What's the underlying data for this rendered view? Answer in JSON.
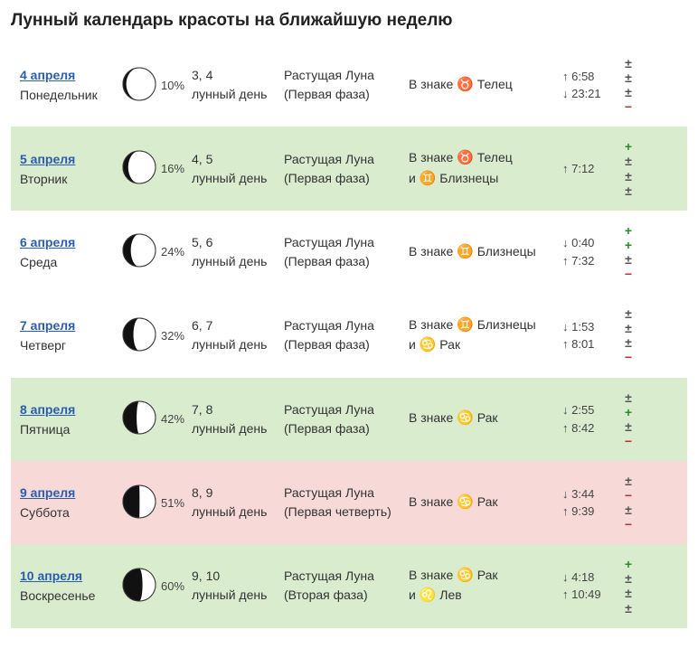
{
  "title": "Лунный календарь красоты на ближайшую неделю",
  "colors": {
    "row_plain": "#ffffff",
    "row_green": "#d9ecce",
    "row_pink": "#f7dad8",
    "link": "#2a5db0",
    "mark_plus": "#2c8a2c",
    "mark_minus": "#c03030",
    "mark_pm": "#555555",
    "moon_dark": "#111111",
    "moon_light": "#ffffff",
    "moon_border": "#333333"
  },
  "zodiac_glyphs": {
    "taurus": "♉",
    "gemini": "♊",
    "cancer": "♋",
    "leo": "♌"
  },
  "rows": [
    {
      "bg": "plain",
      "date": "4 апреля",
      "dow": "Понедельник",
      "illum": "10%",
      "illum_val": 0.1,
      "lunar_days": "3, 4",
      "lunar_days_label": "лунный день",
      "phase_line1": "Растущая Луна",
      "phase_line2": "(Первая фаза)",
      "sign_line1_pre": "В знаке ",
      "sign_line1_glyph": "♉",
      "sign_line1_post": " Телец",
      "sign_line2_pre": "",
      "sign_line2_glyph": "",
      "sign_line2_post": "",
      "time1": "↑ 6:58",
      "time2": "↓ 23:21",
      "marks": [
        "±",
        "±",
        "±",
        "−"
      ]
    },
    {
      "bg": "green",
      "date": "5 апреля",
      "dow": "Вторник",
      "illum": "16%",
      "illum_val": 0.16,
      "lunar_days": "4, 5",
      "lunar_days_label": "лунный день",
      "phase_line1": "Растущая Луна",
      "phase_line2": "(Первая фаза)",
      "sign_line1_pre": "В знаке ",
      "sign_line1_glyph": "♉",
      "sign_line1_post": " Телец",
      "sign_line2_pre": "и ",
      "sign_line2_glyph": "♊",
      "sign_line2_post": " Близнецы",
      "time1": "↑ 7:12",
      "time2": "",
      "marks": [
        "+",
        "±",
        "±",
        "±"
      ]
    },
    {
      "bg": "plain",
      "date": "6 апреля",
      "dow": "Среда",
      "illum": "24%",
      "illum_val": 0.24,
      "lunar_days": "5, 6",
      "lunar_days_label": "лунный день",
      "phase_line1": "Растущая Луна",
      "phase_line2": "(Первая фаза)",
      "sign_line1_pre": "В знаке ",
      "sign_line1_glyph": "♊",
      "sign_line1_post": " Близнецы",
      "sign_line2_pre": "",
      "sign_line2_glyph": "",
      "sign_line2_post": "",
      "time1": "↓ 0:40",
      "time2": "↑ 7:32",
      "marks": [
        "+",
        "+",
        "±",
        "−"
      ]
    },
    {
      "bg": "plain",
      "date": "7 апреля",
      "dow": "Четверг",
      "illum": "32%",
      "illum_val": 0.32,
      "lunar_days": "6, 7",
      "lunar_days_label": "лунный день",
      "phase_line1": "Растущая Луна",
      "phase_line2": "(Первая фаза)",
      "sign_line1_pre": "В знаке ",
      "sign_line1_glyph": "♊",
      "sign_line1_post": " Близнецы",
      "sign_line2_pre": "и ",
      "sign_line2_glyph": "♋",
      "sign_line2_post": " Рак",
      "time1": "↓ 1:53",
      "time2": "↑ 8:01",
      "marks": [
        "±",
        "±",
        "±",
        "−"
      ]
    },
    {
      "bg": "green",
      "date": "8 апреля",
      "dow": "Пятница",
      "illum": "42%",
      "illum_val": 0.42,
      "lunar_days": "7, 8",
      "lunar_days_label": "лунный день",
      "phase_line1": "Растущая Луна",
      "phase_line2": "(Первая фаза)",
      "sign_line1_pre": "В знаке ",
      "sign_line1_glyph": "♋",
      "sign_line1_post": " Рак",
      "sign_line2_pre": "",
      "sign_line2_glyph": "",
      "sign_line2_post": "",
      "time1": "↓ 2:55",
      "time2": "↑ 8:42",
      "marks": [
        "±",
        "+",
        "±",
        "−"
      ]
    },
    {
      "bg": "pink",
      "date": "9 апреля",
      "dow": "Суббота",
      "illum": "51%",
      "illum_val": 0.51,
      "lunar_days": "8, 9",
      "lunar_days_label": "лунный день",
      "phase_line1": "Растущая Луна",
      "phase_line2": "(Первая четверть)",
      "sign_line1_pre": "В знаке ",
      "sign_line1_glyph": "♋",
      "sign_line1_post": " Рак",
      "sign_line2_pre": "",
      "sign_line2_glyph": "",
      "sign_line2_post": "",
      "time1": "↓ 3:44",
      "time2": "↑ 9:39",
      "marks": [
        "±",
        "−",
        "±",
        "−"
      ]
    },
    {
      "bg": "green",
      "date": "10 апреля",
      "dow": "Воскресенье",
      "illum": "60%",
      "illum_val": 0.6,
      "lunar_days": "9, 10",
      "lunar_days_label": "лунный день",
      "phase_line1": "Растущая Луна",
      "phase_line2": "(Вторая фаза)",
      "sign_line1_pre": "В знаке ",
      "sign_line1_glyph": "♋",
      "sign_line1_post": " Рак",
      "sign_line2_pre": "и ",
      "sign_line2_glyph": "♌",
      "sign_line2_post": " Лев",
      "time1": "↓ 4:18",
      "time2": "↑ 10:49",
      "marks": [
        "+",
        "±",
        "±",
        "±"
      ]
    }
  ]
}
